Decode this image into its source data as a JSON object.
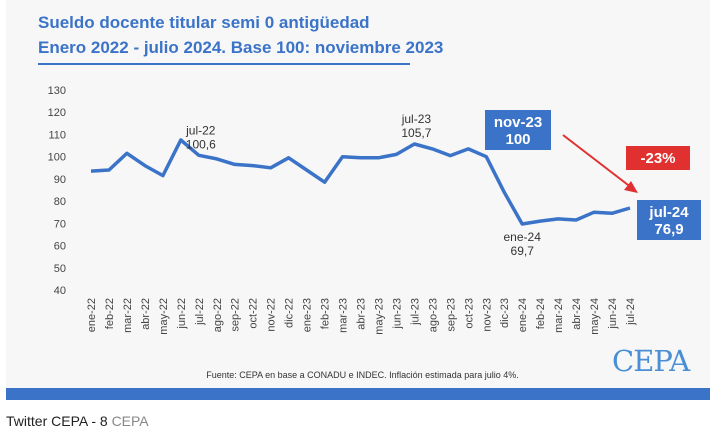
{
  "title_line1": "Sueldo docente titular semi 0 antigüedad",
  "title_line2": "Enero 2022 - julio 2024. Base 100: noviembre 2023",
  "source_note": "Fuente: CEPA en base a CONADU e INDEC. Inflación estimada para julio 4%.",
  "logo_text": "CEPA",
  "caption": "Twitter CEPA - 8",
  "caption_source": "CEPA",
  "colors": {
    "line": "#3b73c8",
    "highlight_box": "#3b73c8",
    "change_box": "#e03030",
    "arrow": "#e03030"
  },
  "chart_data": {
    "type": "line",
    "title": "Sueldo docente titular semi 0 antigüedad",
    "subtitle": "Enero 2022 - julio 2024. Base 100: noviembre 2023",
    "ylim": [
      40,
      130
    ],
    "yticks": [
      40,
      50,
      60,
      70,
      80,
      90,
      100,
      110,
      120,
      130
    ],
    "grid": false,
    "categories": [
      "ene-22",
      "feb-22",
      "mar-22",
      "abr-22",
      "may-22",
      "jun-22",
      "jul-22",
      "ago-22",
      "sep-22",
      "oct-22",
      "nov-22",
      "dic-22",
      "ene-23",
      "feb-23",
      "mar-23",
      "abr-23",
      "may-23",
      "jun-23",
      "jul-23",
      "ago-23",
      "sep-23",
      "oct-23",
      "nov-23",
      "dic-23",
      "ene-24",
      "feb-24",
      "mar-24",
      "abr-24",
      "may-24",
      "jun-24",
      "jul-24"
    ],
    "x_tick_labels": [
      "ene-22",
      "feb-22",
      "mar-22",
      "abr-22",
      "may-22",
      "jun-22",
      "jul-22",
      "ago-22",
      "sep-22",
      "oct-22",
      "nov-22",
      "dic-22",
      "ene-23",
      "feb-23",
      "mar-23",
      "abr-23",
      "may-23",
      "jun-23",
      "jul-23",
      "ago-23",
      "sep-23",
      "oct-23",
      "nov-23",
      "dic-23",
      "ene-24",
      "feb-24",
      "mar-24",
      "abr-24",
      "may-24",
      "jun-24",
      "jul-24"
    ],
    "values": [
      93.5,
      94,
      101.5,
      96,
      91.5,
      107.5,
      100.6,
      99,
      96.5,
      96,
      95,
      99.5,
      94,
      88.5,
      100,
      99.5,
      99.5,
      101,
      105.7,
      103.5,
      100.5,
      103.5,
      100,
      84,
      69.7,
      71,
      72,
      71.5,
      75,
      74.5,
      76.9
    ],
    "annotations": [
      {
        "category": "jul-22",
        "label_top": "jul-22",
        "label_bottom": "100,6",
        "style": "text"
      },
      {
        "category": "jul-23",
        "label_top": "jul-23",
        "label_bottom": "105,7",
        "style": "text"
      },
      {
        "category": "ene-24",
        "label_top": "ene-24",
        "label_bottom": "69,7",
        "style": "text"
      },
      {
        "category": "nov-23",
        "label_top": "nov-23",
        "label_bottom": "100",
        "style": "box"
      },
      {
        "category": "jul-24",
        "label_top": "jul-24",
        "label_bottom": "76,9",
        "style": "box"
      }
    ],
    "change_label": "-23%"
  }
}
